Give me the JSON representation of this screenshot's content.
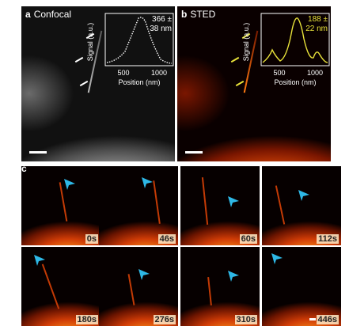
{
  "panels": {
    "a": {
      "letter": "a",
      "title": "Confocal",
      "inset": {
        "fwhm_line1": "366 ±",
        "fwhm_line2": "38 nm",
        "ylabel": "Signal (a.u.)",
        "xlabel": "Position (nm)",
        "ticks": [
          "500",
          "1000"
        ],
        "color": "#ffffff"
      }
    },
    "b": {
      "letter": "b",
      "title": "STED",
      "inset": {
        "fwhm_line1": "188 ±",
        "fwhm_line2": "22 nm",
        "ylabel": "Signal (a.u.)",
        "xlabel": "Position (nm)",
        "ticks": [
          "500",
          "1000"
        ],
        "color": "#e8e23a"
      }
    },
    "c": {
      "letter": "c"
    }
  },
  "timelapse": [
    "0s",
    "46s",
    "60s",
    "112s",
    "180s",
    "276s",
    "310s",
    "446s"
  ],
  "colors": {
    "arrow": "#2eb8e6",
    "text_white": "#ffffff",
    "sted_yellow": "#e8e23a"
  }
}
